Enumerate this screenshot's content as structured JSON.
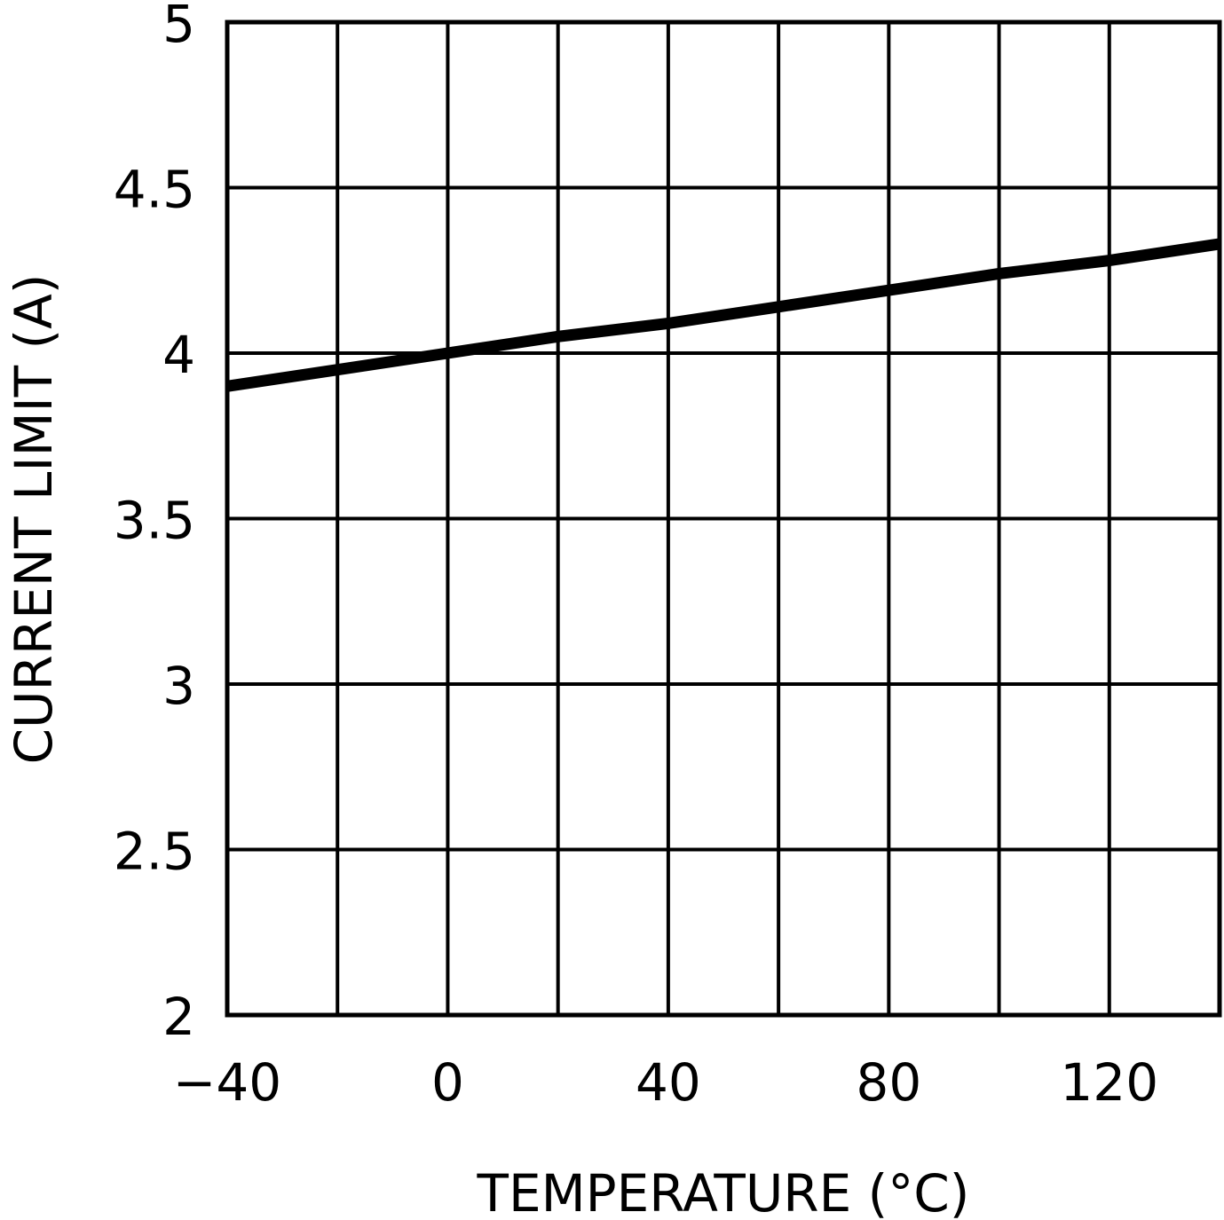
{
  "chart_data": {
    "type": "line",
    "title": "",
    "xlabel": "TEMPERATURE (°C)",
    "ylabel": "CURRENT LIMIT (A)",
    "xlim": [
      -40,
      140
    ],
    "ylim": [
      2,
      5
    ],
    "xticks": [
      -40,
      -20,
      0,
      20,
      40,
      60,
      80,
      100,
      120,
      140
    ],
    "xtick_labels": [
      "-40",
      "0",
      "40",
      "80",
      "120"
    ],
    "yticks": [
      2,
      2.5,
      3,
      3.5,
      4,
      4.5,
      5
    ],
    "ytick_labels": [
      "2",
      "2.5",
      "3",
      "3.5",
      "4",
      "4.5",
      "5"
    ],
    "grid": true,
    "series": [
      {
        "name": "Current Limit",
        "x": [
          -40,
          -20,
          0,
          20,
          40,
          60,
          80,
          100,
          120,
          140
        ],
        "y": [
          3.9,
          3.95,
          4.0,
          4.05,
          4.09,
          4.14,
          4.19,
          4.24,
          4.28,
          4.33
        ]
      }
    ]
  }
}
